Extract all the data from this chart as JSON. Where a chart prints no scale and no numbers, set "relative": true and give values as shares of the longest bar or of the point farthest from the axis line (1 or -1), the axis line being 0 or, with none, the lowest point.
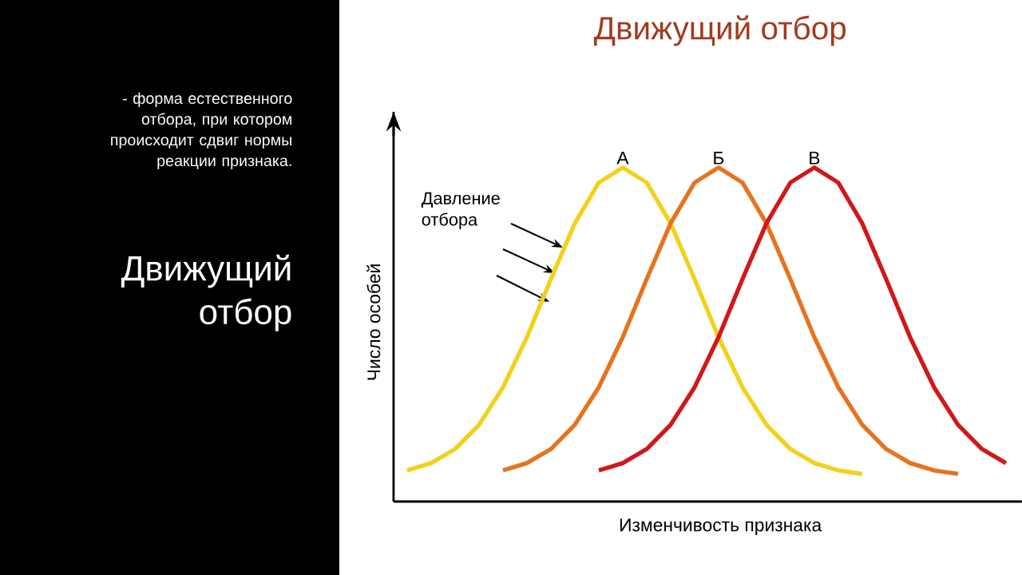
{
  "chart_data": {
    "type": "line",
    "relative": true,
    "title": "Движущий отбор",
    "xlabel": "Изменчивость признака",
    "ylabel": "Число особей",
    "categories": [
      null,
      null,
      null,
      null,
      null,
      null,
      null,
      null,
      null,
      null,
      null,
      null,
      null,
      null,
      null,
      null,
      null,
      null,
      null,
      null,
      null,
      null,
      null,
      null,
      null,
      null
    ],
    "series": [
      {
        "name": "А",
        "color": "#f2d11a",
        "values": [
          0.093,
          0.115,
          0.157,
          0.23,
          0.342,
          0.492,
          0.666,
          0.833,
          0.955,
          1.0,
          0.955,
          0.833,
          0.666,
          0.492,
          0.342,
          0.23,
          0.157,
          0.115,
          0.093,
          0.083,
          null,
          null,
          null,
          null,
          null,
          null
        ]
      },
      {
        "name": "Б",
        "color": "#e6731f",
        "values": [
          null,
          null,
          null,
          null,
          0.093,
          0.115,
          0.157,
          0.23,
          0.342,
          0.492,
          0.666,
          0.833,
          0.955,
          1.0,
          0.955,
          0.833,
          0.666,
          0.492,
          0.342,
          0.23,
          0.157,
          0.115,
          0.093,
          0.083,
          null,
          null
        ]
      },
      {
        "name": "В",
        "color": "#d0181a",
        "values": [
          null,
          null,
          null,
          null,
          null,
          null,
          null,
          null,
          0.093,
          0.115,
          0.157,
          0.23,
          0.342,
          0.492,
          0.666,
          0.833,
          0.955,
          1.0,
          0.955,
          0.833,
          0.666,
          0.492,
          0.342,
          0.23,
          0.157,
          0.115
        ]
      }
    ],
    "annotations": [
      "- форма естественного отбора, при котором происходит сдвиг нормы реакции признака.",
      "Движущий отбор",
      "Давление отбора"
    ]
  }
}
